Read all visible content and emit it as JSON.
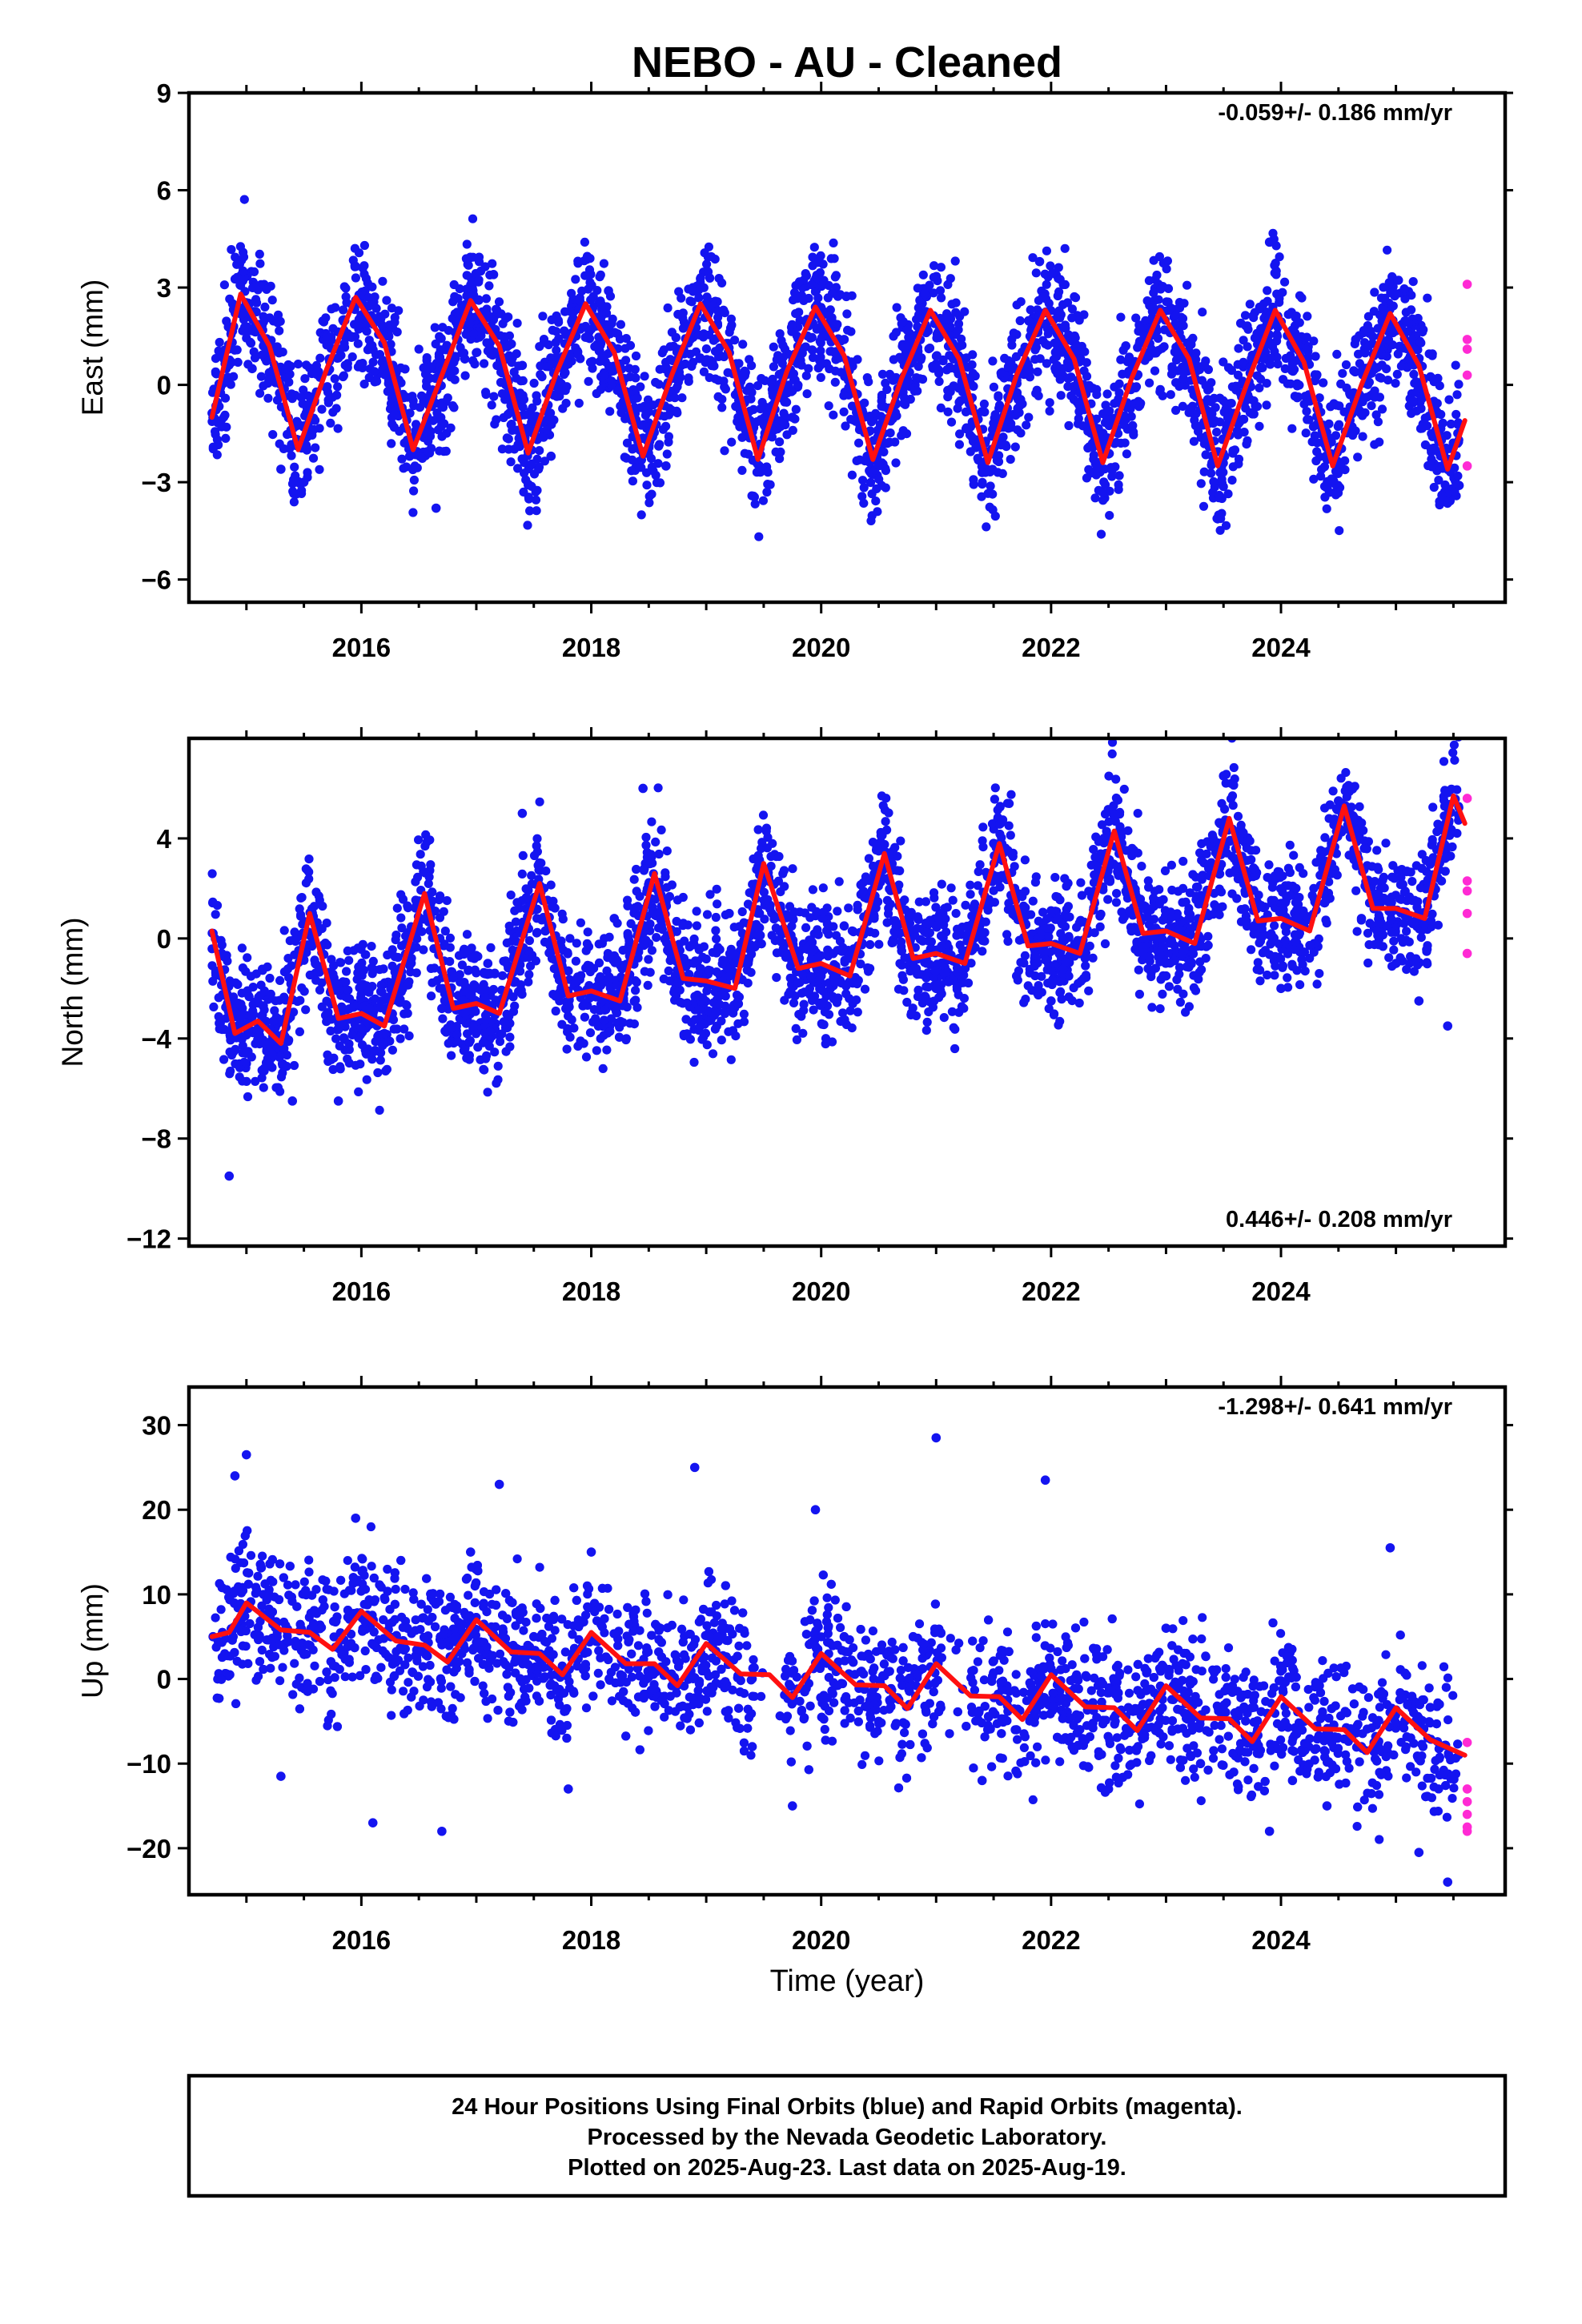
{
  "title": "NEBO  - AU - Cleaned",
  "footer": [
    "24 Hour Positions Using Final Orbits (blue) and Rapid Orbits (magenta).",
    "Processed by the Nevada Geodetic Laboratory.",
    "Plotted on 2025-Aug-23. Last data on 2025-Aug-19."
  ],
  "colors": {
    "final": "#1414f0",
    "rapid": "#ff2ad4",
    "model": "#ff1010",
    "frame": "#000000"
  },
  "chart_data": [
    {
      "type": "scatter",
      "ylabel": "East (mm)",
      "xlabel": "",
      "xlim": [
        2014.5,
        2025.95
      ],
      "ylim": [
        -6.7,
        9
      ],
      "yticks": [
        -6,
        -3,
        0,
        3,
        6,
        9
      ],
      "xticks": [
        2016,
        2018,
        2020,
        2022,
        2024
      ],
      "rate_text": "-0.059+/- 0.186 mm/yr",
      "rate_position": "top-right",
      "series": [
        {
          "role": "final",
          "x": [
            2014.71,
            2014.88,
            2015.05,
            2015.3,
            2015.5,
            2015.72,
            2015.95,
            2016.2,
            2016.42,
            2016.65,
            2016.9,
            2017.15,
            2017.4,
            2017.65,
            2017.9,
            2018.15,
            2018.4,
            2018.65,
            2018.9,
            2019.15,
            2019.4,
            2019.75,
            2019.95,
            2020.2,
            2020.4,
            2020.65,
            2020.9,
            2021.15,
            2021.4,
            2021.65,
            2021.9,
            2022.15,
            2022.4,
            2022.65,
            2022.9,
            2023.15,
            2023.4,
            2023.65,
            2023.9,
            2024.15,
            2024.4,
            2024.65,
            2024.9,
            2025.15,
            2025.4,
            2025.55
          ],
          "y": [
            -1.0,
            2.5,
            0.5,
            -2.6,
            -3.0,
            0.8,
            2.6,
            1.5,
            -2.2,
            -3.8,
            0.8,
            3.4,
            0.6,
            -2.2,
            2.6,
            2.9,
            -0.4,
            -2.5,
            2.1,
            2.3,
            -1.2,
            -1.0,
            2.4,
            1.4,
            -2.2,
            -0.6,
            2.8,
            0.8,
            -2.7,
            0.7,
            3.8,
            0.2,
            -2.6,
            1.2,
            2.6,
            0.2,
            -2.4,
            1.9,
            4.4,
            1.2,
            -2.3,
            1.4,
            2.3,
            -0.5,
            -3.4,
            -3.1
          ]
        }
      ],
      "model": {
        "x": [
          2014.7,
          2014.95,
          2015.2,
          2015.45,
          2015.7,
          2015.95,
          2016.2,
          2016.45,
          2016.7,
          2016.95,
          2017.2,
          2017.45,
          2017.7,
          2017.95,
          2018.2,
          2018.45,
          2018.7,
          2018.95,
          2019.2,
          2019.45,
          2019.7,
          2019.95,
          2020.2,
          2020.45,
          2020.7,
          2020.95,
          2021.2,
          2021.45,
          2021.7,
          2021.95,
          2022.2,
          2022.45,
          2022.7,
          2022.95,
          2023.2,
          2023.45,
          2023.7,
          2023.95,
          2024.2,
          2024.45,
          2024.7,
          2024.95,
          2025.2,
          2025.45,
          2025.6
        ],
        "y": [
          -1.0,
          2.8,
          1.2,
          -2.0,
          0.5,
          2.7,
          1.3,
          -2.0,
          0.3,
          2.6,
          1.2,
          -2.1,
          0.4,
          2.5,
          1.0,
          -2.2,
          0.3,
          2.5,
          1.0,
          -2.3,
          0.4,
          2.4,
          0.9,
          -2.3,
          0.2,
          2.3,
          0.8,
          -2.4,
          0.3,
          2.3,
          0.8,
          -2.4,
          0.2,
          2.3,
          0.8,
          -2.5,
          0.0,
          2.3,
          0.7,
          -2.5,
          0.0,
          2.2,
          0.6,
          -2.6,
          -1.1
        ]
      },
      "rapid": {
        "x": [
          2025.62,
          2025.62,
          2025.62,
          2025.62,
          2025.62
        ],
        "y": [
          3.1,
          1.4,
          1.1,
          0.3,
          -2.5
        ]
      }
    },
    {
      "type": "scatter",
      "ylabel": "North (mm)",
      "xlabel": "",
      "xlim": [
        2014.5,
        2025.95
      ],
      "ylim": [
        -12.3,
        8
      ],
      "yticks": [
        -12,
        -8,
        -4,
        0,
        4
      ],
      "xticks": [
        2016,
        2018,
        2020,
        2022,
        2024
      ],
      "rate_text": "0.446+/- 0.208 mm/yr",
      "rate_position": "bottom-right",
      "series": [
        {
          "role": "final",
          "x": [
            2014.71,
            2014.85,
            2015.0,
            2015.2,
            2015.4,
            2015.6,
            2015.8,
            2016.0,
            2016.2,
            2016.5,
            2016.7,
            2016.9,
            2017.1,
            2017.4,
            2017.6,
            2017.8,
            2018.0,
            2018.2,
            2018.45,
            2018.6,
            2018.8,
            2019.0,
            2019.2,
            2019.5,
            2019.8,
            2020.0,
            2020.2,
            2020.5,
            2020.7,
            2021.0,
            2021.2,
            2021.5,
            2021.7,
            2022.0,
            2022.2,
            2022.5,
            2022.7,
            2023.0,
            2023.2,
            2023.5,
            2023.7,
            2024.0,
            2024.2,
            2024.5,
            2024.7,
            2025.0,
            2025.2,
            2025.45
          ],
          "y": [
            0.2,
            -9.5,
            -5.0,
            -4.2,
            -6.5,
            -1.0,
            -6.5,
            -3.6,
            -3.8,
            1.5,
            -2.8,
            -3.0,
            -1.0,
            5.0,
            0.3,
            -1.3,
            -2.3,
            0.8,
            6.0,
            1.0,
            -0.8,
            -1.8,
            1.0,
            2.7,
            -1.0,
            -1.5,
            0.5,
            3.5,
            -0.5,
            -2.0,
            -0.8,
            3.8,
            -1.5,
            -2.5,
            -0.5,
            4.0,
            0.3,
            -1.5,
            0.8,
            6.5,
            0.7,
            -2.0,
            0.5,
            5.5,
            0.8,
            -1.0,
            -2.5,
            -3.5
          ]
        }
      ],
      "model": {
        "x": [
          2014.7,
          2014.9,
          2015.1,
          2015.3,
          2015.55,
          2015.8,
          2016.0,
          2016.2,
          2016.55,
          2016.8,
          2017.0,
          2017.2,
          2017.55,
          2017.8,
          2018.0,
          2018.25,
          2018.55,
          2018.8,
          2019.0,
          2019.25,
          2019.5,
          2019.8,
          2020.0,
          2020.25,
          2020.55,
          2020.8,
          2021.0,
          2021.25,
          2021.55,
          2021.8,
          2022.0,
          2022.25,
          2022.55,
          2022.8,
          2023.0,
          2023.25,
          2023.55,
          2023.8,
          2024.0,
          2024.25,
          2024.55,
          2024.8,
          2025.0,
          2025.25,
          2025.5,
          2025.6
        ],
        "y": [
          0.3,
          -3.8,
          -3.3,
          -4.2,
          1.0,
          -3.2,
          -3.0,
          -3.5,
          1.8,
          -2.8,
          -2.6,
          -3.0,
          2.2,
          -2.3,
          -2.1,
          -2.5,
          2.6,
          -1.6,
          -1.7,
          -2.0,
          3.0,
          -1.2,
          -1.0,
          -1.5,
          3.4,
          -0.8,
          -0.6,
          -1.0,
          3.8,
          -0.3,
          -0.2,
          -0.6,
          4.3,
          0.2,
          0.3,
          -0.2,
          4.8,
          0.7,
          0.8,
          0.3,
          5.3,
          1.2,
          1.2,
          0.8,
          5.7,
          4.6
        ]
      },
      "rapid": {
        "x": [
          2025.62,
          2025.62,
          2025.62,
          2025.62,
          2025.62
        ],
        "y": [
          5.6,
          2.3,
          1.9,
          1.0,
          -0.6
        ]
      }
    },
    {
      "type": "scatter",
      "ylabel": "Up (mm)",
      "xlabel": "Time (year)",
      "xlim": [
        2014.5,
        2025.95
      ],
      "ylim": [
        -25.5,
        34.5
      ],
      "yticks": [
        -20,
        -10,
        0,
        10,
        20,
        30
      ],
      "xticks": [
        2016,
        2018,
        2020,
        2022,
        2024
      ],
      "rate_text": "-1.298+/- 0.641 mm/yr",
      "rate_position": "top-right",
      "series": [
        {
          "role": "final",
          "x": [
            2014.71,
            2014.9,
            2015.0,
            2015.3,
            2015.6,
            2015.95,
            2016.1,
            2016.4,
            2016.7,
            2016.95,
            2017.2,
            2017.5,
            2017.8,
            2018.0,
            2018.3,
            2018.6,
            2018.9,
            2019.1,
            2019.4,
            2019.75,
            2019.95,
            2020.2,
            2020.5,
            2020.8,
            2021.0,
            2021.4,
            2021.7,
            2021.95,
            2022.2,
            2022.5,
            2022.8,
            2023.0,
            2023.3,
            2023.6,
            2023.9,
            2024.1,
            2024.4,
            2024.7,
            2024.95,
            2025.2,
            2025.45
          ],
          "y": [
            5.0,
            24.0,
            26.5,
            -11.5,
            5.0,
            19.0,
            -17.0,
            6.0,
            -18.0,
            15.0,
            23.0,
            5.0,
            -13.0,
            15.0,
            2.0,
            6.0,
            25.0,
            5.0,
            -8.0,
            -15.0,
            20.0,
            5.0,
            -5.0,
            5.0,
            28.5,
            -12.0,
            -6.0,
            23.5,
            0.0,
            -13.0,
            -3.0,
            6.0,
            -10.0,
            -4.0,
            -18.0,
            -12.0,
            -15.0,
            -8.0,
            15.5,
            -20.5,
            -24.0
          ]
        }
      ],
      "model": {
        "x": [
          2014.7,
          2014.85,
          2015.0,
          2015.3,
          2015.55,
          2015.75,
          2016.0,
          2016.3,
          2016.55,
          2016.75,
          2017.0,
          2017.3,
          2017.55,
          2017.75,
          2018.0,
          2018.3,
          2018.55,
          2018.75,
          2019.0,
          2019.3,
          2019.55,
          2019.75,
          2020.0,
          2020.3,
          2020.55,
          2020.75,
          2021.0,
          2021.3,
          2021.55,
          2021.75,
          2022.0,
          2022.3,
          2022.55,
          2022.75,
          2023.0,
          2023.3,
          2023.55,
          2023.75,
          2024.0,
          2024.3,
          2024.55,
          2024.75,
          2025.0,
          2025.3,
          2025.6
        ],
        "y": [
          5.0,
          5.5,
          9.0,
          5.8,
          5.5,
          3.5,
          8.0,
          4.5,
          4.0,
          2.0,
          7.0,
          3.2,
          3.0,
          0.5,
          5.5,
          1.8,
          1.8,
          -0.8,
          4.2,
          0.6,
          0.5,
          -2.2,
          3.0,
          -0.7,
          -0.8,
          -3.5,
          1.8,
          -2.0,
          -2.1,
          -4.8,
          0.5,
          -3.3,
          -3.4,
          -6.1,
          -0.8,
          -4.6,
          -4.7,
          -7.4,
          -2.1,
          -5.9,
          -6.0,
          -8.7,
          -3.4,
          -7.2,
          -9.0
        ]
      },
      "rapid": {
        "x": [
          2025.62,
          2025.62,
          2025.62,
          2025.62,
          2025.62,
          2025.62
        ],
        "y": [
          -7.5,
          -13.0,
          -14.5,
          -16.0,
          -17.5,
          -18.0
        ]
      }
    }
  ]
}
